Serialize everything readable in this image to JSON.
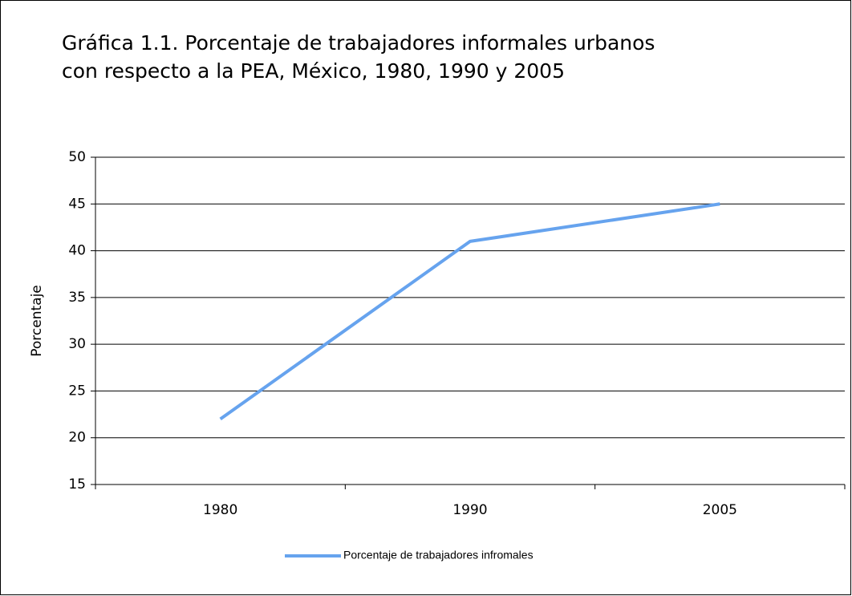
{
  "chart_data": {
    "type": "line",
    "title": [
      "Gráfica 1.1. Porcentaje de trabajadores informales urbanos",
      "con respecto a la PEA, México, 1980, 1990 y 2005"
    ],
    "y_label": "Porcentaje",
    "categories": [
      "1980",
      "1990",
      "2005"
    ],
    "series": [
      {
        "name": "Porcentaje de trabajadores infromales",
        "color": "#66a3ee",
        "values": [
          22,
          41,
          45
        ]
      }
    ],
    "ylim": [
      15,
      50
    ],
    "yticks": [
      15,
      20,
      25,
      30,
      35,
      40,
      45,
      50
    ],
    "grid": true,
    "legend": "bottom"
  }
}
